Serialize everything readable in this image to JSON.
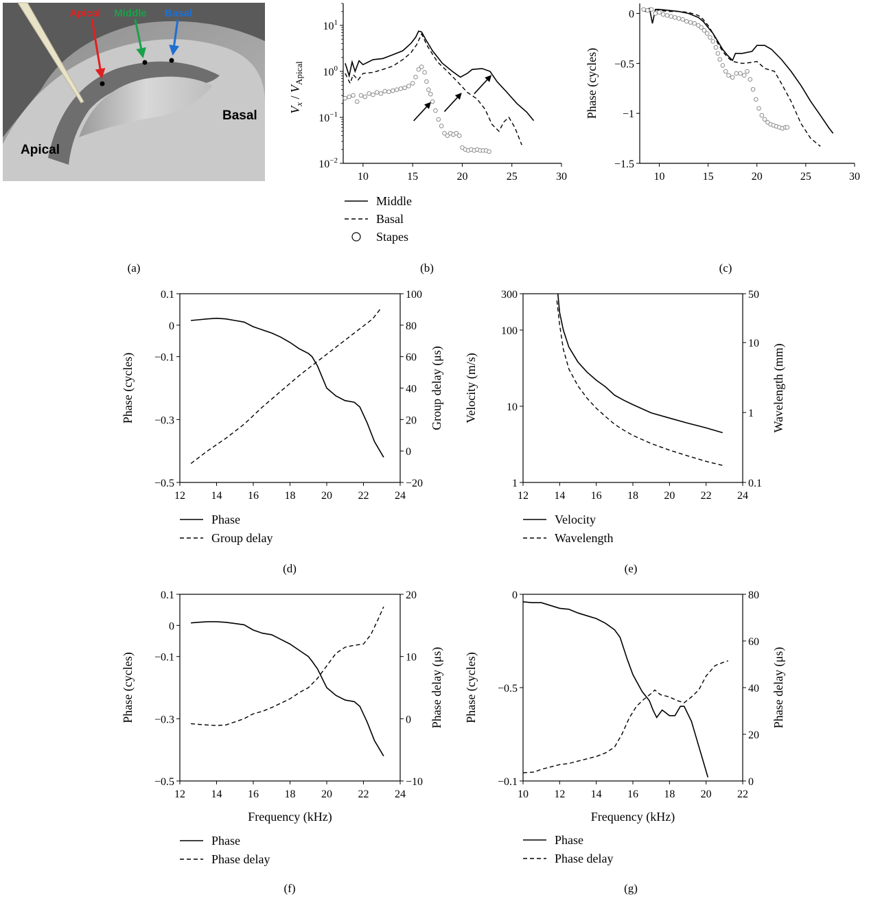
{
  "photo": {
    "labels": {
      "apical_arrow": "Apical",
      "middle_arrow": "Middle",
      "basal_arrow": "Basal",
      "apical_region": "Apical",
      "basal_region": "Basal"
    },
    "colors": {
      "apical": "#e02020",
      "middle": "#1aa04a",
      "basal": "#1f6fd0"
    }
  },
  "panel_labels": {
    "a": "(a)",
    "b": "(b)",
    "c": "(c)",
    "d": "(d)",
    "e": "(e)",
    "f": "(f)",
    "g": "(g)"
  },
  "chart_data": [
    {
      "id": "b",
      "type": "line",
      "xlabel": "",
      "ylabel": "V_x / V_Apical",
      "yscale": "log",
      "xlim": [
        8,
        30
      ],
      "ylim": [
        0.01,
        30
      ],
      "xticks": [
        "10",
        "15",
        "20",
        "25",
        "30"
      ],
      "yticks": [
        "10^-2",
        "10^-1",
        "10^0",
        "10^1"
      ],
      "legend": [
        "Middle",
        "Basal",
        "Stapes"
      ],
      "series": [
        {
          "name": "Middle",
          "style": "solid",
          "x": [
            8.2,
            8.6,
            8.9,
            9.2,
            9.6,
            10.0,
            11.0,
            12.0,
            13.0,
            14.0,
            14.8,
            15.3,
            15.6,
            15.9,
            16.3,
            17.0,
            18.0,
            19.0,
            19.8,
            20.5,
            21.0,
            22.0,
            22.8,
            23.5,
            24.5,
            25.5,
            26.5,
            27.2
          ],
          "y": [
            1.5,
            0.8,
            1.6,
            1.0,
            1.7,
            1.4,
            1.8,
            1.9,
            2.3,
            2.8,
            4.0,
            5.5,
            7.5,
            7.2,
            5.0,
            2.8,
            1.5,
            1.0,
            0.75,
            0.9,
            1.1,
            1.15,
            1.0,
            0.6,
            0.35,
            0.2,
            0.13,
            0.085
          ]
        },
        {
          "name": "Basal",
          "style": "dashed",
          "x": [
            8.2,
            8.7,
            9.0,
            9.5,
            10.0,
            11.0,
            12.0,
            13.0,
            14.0,
            14.8,
            15.4,
            15.9,
            16.5,
            17.5,
            18.5,
            19.5,
            20.5,
            21.5,
            22.3,
            23.0,
            23.7,
            24.2,
            24.7,
            25.3,
            26.0
          ],
          "y": [
            0.9,
            0.55,
            0.85,
            0.65,
            0.9,
            0.95,
            1.1,
            1.3,
            1.8,
            2.5,
            3.8,
            6.5,
            3.5,
            1.6,
            1.0,
            0.6,
            0.35,
            0.25,
            0.15,
            0.07,
            0.05,
            0.08,
            0.1,
            0.06,
            0.025
          ]
        },
        {
          "name": "Stapes",
          "style": "circle",
          "x": [
            8.2,
            8.6,
            9.0,
            9.4,
            9.8,
            10.2,
            10.6,
            11.0,
            11.4,
            11.8,
            12.2,
            12.6,
            13.0,
            13.4,
            13.8,
            14.2,
            14.6,
            15.0,
            15.3,
            15.6,
            15.9,
            16.2,
            16.4,
            16.6,
            16.8,
            17.0,
            17.3,
            17.6,
            17.9,
            18.2,
            18.5,
            18.8,
            19.1,
            19.4,
            19.7,
            20.0,
            20.3,
            20.6,
            20.9,
            21.2,
            21.5,
            21.8,
            22.1,
            22.4,
            22.7
          ],
          "y": [
            0.26,
            0.28,
            0.3,
            0.22,
            0.3,
            0.28,
            0.33,
            0.31,
            0.35,
            0.33,
            0.37,
            0.36,
            0.38,
            0.4,
            0.42,
            0.44,
            0.48,
            0.55,
            0.75,
            1.1,
            1.25,
            0.95,
            0.6,
            0.4,
            0.32,
            0.22,
            0.14,
            0.09,
            0.065,
            0.045,
            0.04,
            0.045,
            0.042,
            0.045,
            0.04,
            0.022,
            0.02,
            0.019,
            0.02,
            0.019,
            0.02,
            0.019,
            0.019,
            0.019,
            0.018
          ]
        }
      ],
      "arrows": [
        {
          "x": 16.9,
          "y": 0.22
        },
        {
          "x": 20.0,
          "y": 0.35
        },
        {
          "x": 23.0,
          "y": 0.85
        }
      ]
    },
    {
      "id": "c",
      "type": "line",
      "xlabel": "",
      "ylabel": "Phase (cycles)",
      "xlim": [
        8,
        30
      ],
      "ylim": [
        -1.5,
        0.1
      ],
      "xticks": [
        "10",
        "15",
        "20",
        "25",
        "30"
      ],
      "yticks": [
        "0",
        "−0.5",
        "−1",
        "−1.5"
      ],
      "series": [
        {
          "name": "Middle",
          "style": "solid",
          "x": [
            8.2,
            8.6,
            9.0,
            9.3,
            9.6,
            10.0,
            11.0,
            12.0,
            13.0,
            14.0,
            14.5,
            15.0,
            15.5,
            16.0,
            16.5,
            17.0,
            17.5,
            17.8,
            18.5,
            19.5,
            20.0,
            20.8,
            21.5,
            22.5,
            23.5,
            24.5,
            25.5,
            26.5,
            27.4,
            27.8
          ],
          "y": [
            0.05,
            0.02,
            0.05,
            -0.1,
            0.04,
            0.04,
            0.03,
            0.02,
            0.0,
            -0.04,
            -0.08,
            -0.14,
            -0.2,
            -0.28,
            -0.36,
            -0.42,
            -0.47,
            -0.4,
            -0.4,
            -0.38,
            -0.32,
            -0.32,
            -0.36,
            -0.46,
            -0.58,
            -0.72,
            -0.88,
            -1.02,
            -1.15,
            -1.2
          ]
        },
        {
          "name": "Basal",
          "style": "dashed",
          "x": [
            8.2,
            9.0,
            10.0,
            11.0,
            12.0,
            13.0,
            14.0,
            14.5,
            15.0,
            15.5,
            16.0,
            16.5,
            17.0,
            17.5,
            18.5,
            19.5,
            20.0,
            20.8,
            21.8,
            22.5,
            23.5,
            24.5,
            25.5,
            26.5
          ],
          "y": [
            0.04,
            0.05,
            0.03,
            0.02,
            0.02,
            0.01,
            -0.02,
            -0.06,
            -0.12,
            -0.2,
            -0.3,
            -0.38,
            -0.44,
            -0.48,
            -0.5,
            -0.49,
            -0.48,
            -0.55,
            -0.58,
            -0.7,
            -0.88,
            -1.1,
            -1.25,
            -1.33
          ]
        },
        {
          "name": "Stapes",
          "style": "circle",
          "x": [
            8.4,
            8.8,
            9.2,
            9.6,
            10.0,
            10.4,
            10.8,
            11.2,
            11.6,
            12.0,
            12.4,
            12.8,
            13.2,
            13.6,
            14.0,
            14.3,
            14.6,
            14.9,
            15.2,
            15.5,
            15.8,
            16.0,
            16.2,
            16.5,
            16.8,
            17.1,
            17.5,
            17.9,
            18.3,
            18.7,
            19.0,
            19.3,
            19.6,
            19.9,
            20.2,
            20.5,
            20.8,
            21.1,
            21.4,
            21.7,
            22.0,
            22.3,
            22.6,
            22.9,
            23.1
          ],
          "y": [
            0.04,
            0.03,
            0.04,
            0.0,
            0.01,
            -0.01,
            -0.02,
            -0.03,
            -0.04,
            -0.05,
            -0.06,
            -0.08,
            -0.09,
            -0.1,
            -0.12,
            -0.14,
            -0.17,
            -0.2,
            -0.24,
            -0.28,
            -0.34,
            -0.4,
            -0.46,
            -0.52,
            -0.58,
            -0.62,
            -0.64,
            -0.6,
            -0.6,
            -0.62,
            -0.58,
            -0.66,
            -0.76,
            -0.86,
            -0.95,
            -1.02,
            -1.06,
            -1.09,
            -1.11,
            -1.12,
            -1.13,
            -1.14,
            -1.15,
            -1.14,
            -1.14
          ]
        }
      ]
    },
    {
      "id": "d",
      "type": "line",
      "xlabel": "",
      "ylabel": "Phase (cycles)",
      "ylabel_right": "Group delay (μs)",
      "xlim": [
        12,
        24
      ],
      "ylim": [
        -0.5,
        0.1
      ],
      "ylim_right": [
        -20,
        100
      ],
      "xticks": [
        "12",
        "14",
        "16",
        "18",
        "20",
        "22",
        "24"
      ],
      "yticks": [
        "0.1",
        "0",
        "−0.1",
        "−0.3",
        "−0.5"
      ],
      "yticks_right": [
        "100",
        "80",
        "60",
        "40",
        "20",
        "0",
        "−20"
      ],
      "legend": [
        "Phase",
        "Group delay"
      ],
      "series": [
        {
          "name": "Phase",
          "style": "solid",
          "axis": "left",
          "x": [
            12.6,
            13.0,
            13.5,
            14.0,
            14.5,
            15.0,
            15.5,
            16.0,
            16.5,
            17.0,
            17.5,
            18.0,
            18.5,
            19.0,
            19.2,
            19.5,
            20.0,
            20.5,
            21.0,
            21.5,
            21.8,
            22.2,
            22.6,
            23.1
          ],
          "y": [
            0.015,
            0.017,
            0.02,
            0.022,
            0.02,
            0.015,
            0.01,
            -0.005,
            -0.015,
            -0.025,
            -0.038,
            -0.055,
            -0.075,
            -0.09,
            -0.1,
            -0.13,
            -0.2,
            -0.225,
            -0.24,
            -0.245,
            -0.26,
            -0.31,
            -0.37,
            -0.42
          ]
        },
        {
          "name": "Group delay",
          "style": "dashed",
          "axis": "right",
          "x": [
            12.6,
            13.5,
            14.5,
            15.5,
            16.5,
            17.5,
            18.5,
            19.5,
            20.5,
            21.5,
            22.5,
            22.9
          ],
          "y": [
            -8,
            0,
            8,
            17,
            28,
            38,
            48,
            57,
            66,
            75,
            84,
            90
          ]
        }
      ]
    },
    {
      "id": "e",
      "type": "line",
      "xlabel": "",
      "ylabel": "Velocity (m/s)",
      "ylabel_right": "Wavelength (mm)",
      "yscale": "log",
      "xlim": [
        12,
        24
      ],
      "ylim": [
        1,
        300
      ],
      "ylim_right": [
        0.1,
        50
      ],
      "xticks": [
        "12",
        "14",
        "16",
        "18",
        "20",
        "22",
        "24"
      ],
      "yticks": [
        "1",
        "10",
        "100",
        "300"
      ],
      "yticks_right": [
        "0.1",
        "1",
        "10",
        "50"
      ],
      "legend": [
        "Velocity",
        "Wavelength"
      ],
      "series": [
        {
          "name": "Velocity",
          "style": "solid",
          "axis": "left",
          "x": [
            13.9,
            14.0,
            14.2,
            14.5,
            15.0,
            15.5,
            16.0,
            16.5,
            17.0,
            17.5,
            18.0,
            19.0,
            20.0,
            21.0,
            22.0,
            22.9
          ],
          "y": [
            300,
            170,
            100,
            60,
            38,
            28,
            22,
            18,
            14,
            12,
            10.5,
            8.2,
            7.0,
            6.0,
            5.2,
            4.5
          ]
        },
        {
          "name": "Wavelength",
          "style": "dashed",
          "axis": "right",
          "x": [
            13.85,
            14.0,
            14.2,
            14.5,
            15.0,
            15.5,
            16.0,
            16.5,
            17.0,
            17.5,
            18.0,
            19.0,
            20.0,
            21.0,
            22.0,
            22.9
          ],
          "y": [
            40,
            18,
            8,
            4.2,
            2.4,
            1.6,
            1.15,
            0.88,
            0.68,
            0.56,
            0.47,
            0.36,
            0.29,
            0.24,
            0.2,
            0.175
          ]
        }
      ]
    },
    {
      "id": "f",
      "type": "line",
      "xlabel": "Frequency (kHz)",
      "ylabel": "Phase (cycles)",
      "ylabel_right": "Phase delay (μs)",
      "xlim": [
        12,
        24
      ],
      "ylim": [
        -0.5,
        0.1
      ],
      "ylim_right": [
        -10,
        20
      ],
      "xticks": [
        "12",
        "14",
        "16",
        "18",
        "20",
        "22",
        "24"
      ],
      "yticks": [
        "0.1",
        "0",
        "−0.1",
        "−0.3",
        "−0.5"
      ],
      "yticks_right": [
        "20",
        "10",
        "0",
        "−10"
      ],
      "legend": [
        "Phase",
        "Phase delay"
      ],
      "series": [
        {
          "name": "Phase",
          "style": "solid",
          "axis": "left",
          "x": [
            12.6,
            13.0,
            13.5,
            14.0,
            14.5,
            15.0,
            15.5,
            16.0,
            16.5,
            17.0,
            17.5,
            18.0,
            18.5,
            19.0,
            19.2,
            19.5,
            20.0,
            20.5,
            21.0,
            21.5,
            21.8,
            22.2,
            22.6,
            23.1
          ],
          "y": [
            0.008,
            0.01,
            0.012,
            0.012,
            0.01,
            0.006,
            0.002,
            -0.015,
            -0.025,
            -0.03,
            -0.045,
            -0.06,
            -0.08,
            -0.1,
            -0.115,
            -0.14,
            -0.2,
            -0.225,
            -0.24,
            -0.245,
            -0.26,
            -0.31,
            -0.37,
            -0.42
          ]
        },
        {
          "name": "Phase delay",
          "style": "dashed",
          "axis": "right",
          "x": [
            12.6,
            13.0,
            13.5,
            14.0,
            14.5,
            15.0,
            15.5,
            16.0,
            16.5,
            17.0,
            17.5,
            18.0,
            18.5,
            19.0,
            19.5,
            20.0,
            20.5,
            21.0,
            21.5,
            22.0,
            22.4,
            22.8,
            23.1
          ],
          "y": [
            -0.8,
            -0.9,
            -1.0,
            -1.1,
            -1.0,
            -0.5,
            0.0,
            0.8,
            1.2,
            1.8,
            2.5,
            3.2,
            4.2,
            5.0,
            6.5,
            8.5,
            10.5,
            11.5,
            11.8,
            12.0,
            13.5,
            16.0,
            18.0
          ]
        }
      ]
    },
    {
      "id": "g",
      "type": "line",
      "xlabel": "Frequency (kHz)",
      "ylabel": "Phase (cycles)",
      "ylabel_right": "Phase delay (μs)",
      "xlim": [
        10,
        22
      ],
      "ylim": [
        -1.0,
        0
      ],
      "ylim_right": [
        0,
        80
      ],
      "xticks": [
        "10",
        "12",
        "14",
        "16",
        "18",
        "20",
        "22"
      ],
      "yticks": [
        "0",
        "−0.5",
        "−0.1"
      ],
      "yticks_right": [
        "80",
        "60",
        "40",
        "20",
        "0"
      ],
      "legend": [
        "Phase",
        "Phase delay"
      ],
      "series": [
        {
          "name": "Phase",
          "style": "solid",
          "axis": "left",
          "x": [
            10.0,
            10.5,
            11.0,
            11.5,
            12.0,
            12.5,
            13.0,
            13.5,
            14.0,
            14.5,
            15.0,
            15.3,
            15.7,
            16.0,
            16.5,
            16.9,
            17.1,
            17.3,
            17.6,
            18.0,
            18.3,
            18.6,
            18.8,
            19.2,
            19.5,
            19.8,
            20.1
          ],
          "y": [
            -0.04,
            -0.045,
            -0.045,
            -0.06,
            -0.075,
            -0.08,
            -0.1,
            -0.115,
            -0.13,
            -0.155,
            -0.19,
            -0.23,
            -0.35,
            -0.43,
            -0.52,
            -0.57,
            -0.62,
            -0.66,
            -0.62,
            -0.65,
            -0.65,
            -0.6,
            -0.6,
            -0.68,
            -0.78,
            -0.88,
            -0.98
          ]
        },
        {
          "name": "Phase delay",
          "style": "dashed",
          "axis": "right",
          "x": [
            10.0,
            10.6,
            11.0,
            11.5,
            12.0,
            12.5,
            13.0,
            13.5,
            14.0,
            14.5,
            15.0,
            15.4,
            15.8,
            16.2,
            16.6,
            17.0,
            17.2,
            17.5,
            18.0,
            18.4,
            18.8,
            19.2,
            19.6,
            20.0,
            20.5,
            21.0,
            21.2
          ],
          "y": [
            3.5,
            3.8,
            5.0,
            6.0,
            7.0,
            7.5,
            8.5,
            9.5,
            10.5,
            12.0,
            14.5,
            20.0,
            27.0,
            32.0,
            35.0,
            37.5,
            39.0,
            37.0,
            36.0,
            34.5,
            33.5,
            36.0,
            39.0,
            45.0,
            49.5,
            51.0,
            51.5
          ]
        }
      ]
    }
  ]
}
